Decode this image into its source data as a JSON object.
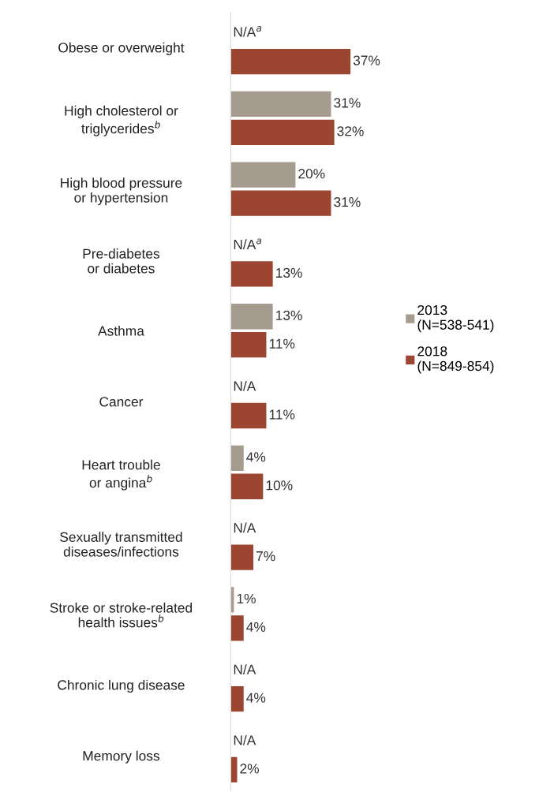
{
  "chart_data": {
    "type": "bar",
    "orientation": "horizontal",
    "categories": [
      "Obese or overweight",
      "High cholesterol or\ntriglycerides$^{b}$",
      "High blood pressure\nor hypertension",
      "Pre-diabetes\nor diabetes",
      "Asthma",
      "Cancer",
      "Heart trouble\nor angina$^{b}$",
      "Sexually transmitted\ndiseases/infections",
      "Stroke or stroke-related\nhealth issues$^{b}$",
      "Chronic lung disease",
      "Memory loss"
    ],
    "series": [
      {
        "name": "2013\n(N=538-541)",
        "color": "#a59c8f",
        "values": [
          null,
          31,
          20,
          null,
          13,
          null,
          4,
          null,
          1,
          null,
          null
        ],
        "value_labels": [
          "N/A$^{a}$",
          "31%",
          "20%",
          "N/A$^{a}$",
          "13%",
          "N/A",
          "4%",
          "N/A",
          "1%",
          "N/A",
          "N/A"
        ]
      },
      {
        "name": "2018\n(N=849-854)",
        "color": "#9c4632",
        "values": [
          37,
          32,
          31,
          13,
          11,
          11,
          10,
          7,
          4,
          4,
          2
        ],
        "value_labels": [
          "37%",
          "32%",
          "31%",
          "13%",
          "11%",
          "11%",
          "10%",
          "7%",
          "4%",
          "4%",
          "2%"
        ]
      }
    ],
    "legend": "right",
    "grid": false
  }
}
